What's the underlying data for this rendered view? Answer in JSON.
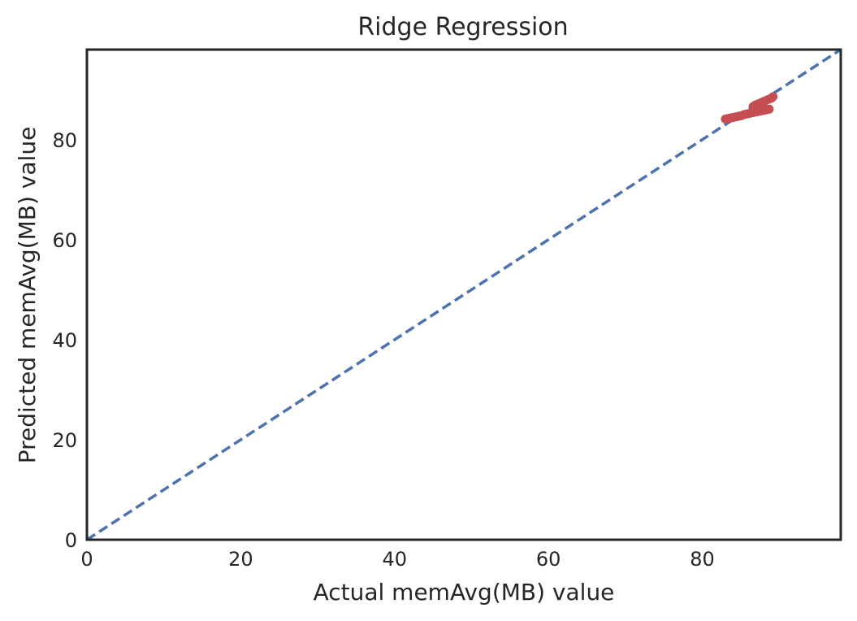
{
  "chart_data": {
    "type": "scatter",
    "title": "Ridge Regression",
    "xlabel": "Actual memAvg(MB) value",
    "ylabel": "Predicted memAvg(MB) value",
    "xlim": [
      0,
      98
    ],
    "ylim": [
      0,
      98
    ],
    "xticks": [
      0,
      20,
      40,
      60,
      80
    ],
    "yticks": [
      0,
      20,
      40,
      60,
      80
    ],
    "grid": false,
    "reference_line": {
      "x": [
        0,
        98
      ],
      "y": [
        0,
        98
      ],
      "style": "dashed",
      "color": "#4c72b0"
    },
    "series": [
      {
        "color": "#c44e52",
        "points": [
          [
            83.0,
            84.1
          ],
          [
            83.3,
            84.2
          ],
          [
            83.6,
            84.3
          ],
          [
            83.9,
            84.4
          ],
          [
            84.2,
            84.5
          ],
          [
            84.5,
            84.6
          ],
          [
            84.8,
            84.7
          ],
          [
            85.1,
            84.8
          ],
          [
            85.4,
            85.0
          ],
          [
            85.7,
            85.1
          ],
          [
            86.0,
            85.2
          ],
          [
            86.3,
            85.3
          ],
          [
            86.6,
            85.4
          ],
          [
            86.9,
            85.5
          ],
          [
            87.2,
            85.6
          ],
          [
            87.5,
            85.7
          ],
          [
            87.8,
            85.8
          ],
          [
            88.1,
            85.9
          ],
          [
            88.4,
            86.0
          ],
          [
            88.7,
            86.1
          ],
          [
            87.0,
            86.0
          ],
          [
            86.6,
            86.6
          ],
          [
            86.9,
            86.9
          ],
          [
            87.2,
            87.1
          ],
          [
            87.5,
            87.3
          ],
          [
            87.8,
            87.5
          ],
          [
            88.1,
            87.7
          ],
          [
            88.4,
            87.9
          ],
          [
            88.7,
            88.1
          ],
          [
            89.0,
            88.3
          ],
          [
            89.2,
            88.6
          ],
          [
            88.0,
            86.4
          ],
          [
            86.8,
            86.2
          ],
          [
            87.3,
            86.5
          ],
          [
            87.6,
            86.8
          ]
        ]
      }
    ]
  }
}
